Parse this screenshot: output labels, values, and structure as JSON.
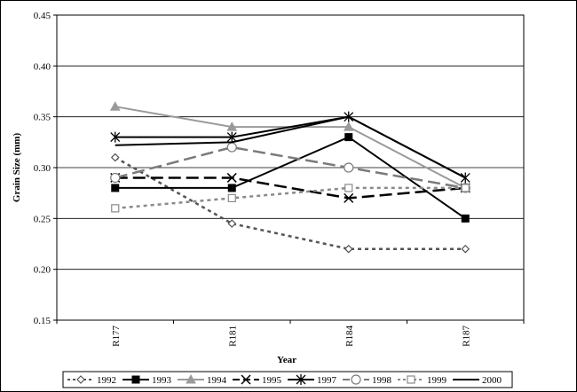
{
  "chart_data": {
    "type": "line",
    "xlabel": "Year",
    "ylabel": "Grain Size (mm)",
    "ylim": [
      0.15,
      0.45
    ],
    "yticks": [
      "0.15",
      "0.20",
      "0.25",
      "0.30",
      "0.35",
      "0.40",
      "0.45"
    ],
    "ytick_values": [
      0.15,
      0.2,
      0.25,
      0.3,
      0.35,
      0.4,
      0.45
    ],
    "categories": [
      "R177",
      "R181",
      "R184",
      "R187"
    ],
    "grid": true,
    "legend_position": "bottom",
    "series": [
      {
        "name": "1992",
        "values": [
          0.31,
          0.245,
          0.22,
          0.22
        ],
        "color": "#555555",
        "dash": "dotted",
        "marker": "diamond"
      },
      {
        "name": "1993",
        "values": [
          0.28,
          0.28,
          0.33,
          0.25
        ],
        "color": "#000000",
        "dash": "solid",
        "marker": "square-filled"
      },
      {
        "name": "1994",
        "values": [
          0.36,
          0.34,
          0.34,
          0.28
        ],
        "color": "#9a9a9a",
        "dash": "solid",
        "marker": "triangle"
      },
      {
        "name": "1995",
        "values": [
          0.29,
          0.29,
          0.27,
          0.28
        ],
        "color": "#000000",
        "dash": "dashed",
        "marker": "x"
      },
      {
        "name": "1997",
        "values": [
          0.33,
          0.33,
          0.35,
          0.29
        ],
        "color": "#000000",
        "dash": "solid",
        "marker": "star"
      },
      {
        "name": "1998",
        "values": [
          0.29,
          0.32,
          0.3,
          0.28
        ],
        "color": "#7a7a7a",
        "dash": "dashed",
        "marker": "circle"
      },
      {
        "name": "1999",
        "values": [
          0.26,
          0.27,
          0.28,
          0.28
        ],
        "color": "#8a8a8a",
        "dash": "dotted",
        "marker": "square-open"
      },
      {
        "name": "2000",
        "values": [
          0.322,
          0.325,
          0.35,
          0.29
        ],
        "color": "#000000",
        "dash": "solid",
        "marker": "none"
      }
    ]
  }
}
